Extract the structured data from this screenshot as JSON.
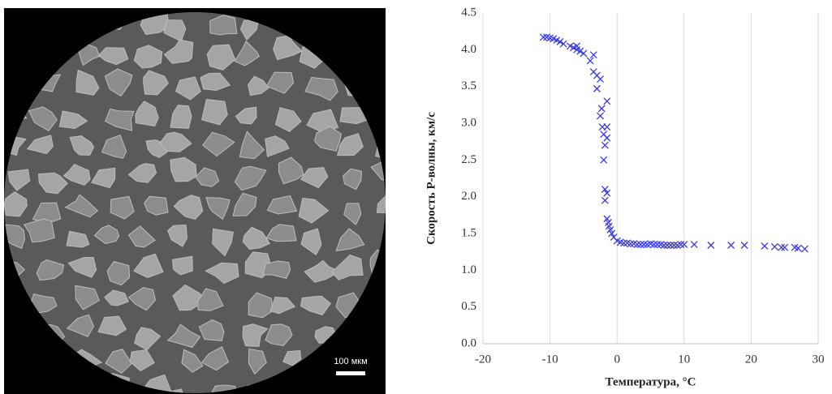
{
  "image": {
    "scale_label": "100 мкм"
  },
  "chart_data": {
    "type": "scatter",
    "x_label": "Температура, °С",
    "y_label": "Скорость P-волны, км/с",
    "xlim": [
      -20,
      30
    ],
    "xticks": [
      -20,
      -10,
      0,
      10,
      20,
      30
    ],
    "ylim": [
      0,
      4.5
    ],
    "yticks": [
      {
        "value": 0,
        "label": "0.0"
      },
      0.5,
      {
        "value": 1,
        "label": "1.0"
      },
      1.5,
      {
        "value": 2,
        "label": "2.0"
      },
      2.5,
      {
        "value": 3,
        "label": "3.0"
      },
      3.5,
      {
        "value": 4,
        "label": "4.0"
      },
      4.5
    ],
    "grid": "x",
    "series": [
      {
        "name": null,
        "color": "#3a3ae0",
        "marker": "x",
        "x": [
          -11,
          -10.5,
          -10,
          -9.5,
          -9,
          -8.5,
          -8,
          -7,
          -6.5,
          -6,
          -6,
          -5.5,
          -5,
          -4,
          -3.5,
          -3.5,
          -3,
          -3,
          -2.5,
          -2.3,
          -2.5,
          -2.2,
          -2,
          -1.8,
          -2,
          -1.5,
          -1.5,
          -1.5,
          -1.8,
          -1.5,
          -1.8,
          -1.5,
          -1.3,
          -1.2,
          -1,
          -0.8,
          -0.5,
          0,
          0.5,
          1,
          1.5,
          2,
          2.5,
          3,
          3.5,
          4,
          4.5,
          5,
          5.5,
          6,
          6.5,
          7,
          7.5,
          8,
          8.5,
          9,
          9.5,
          10,
          11.5,
          14,
          17,
          19,
          22,
          23.5,
          24.5,
          25,
          26.5,
          27,
          28
        ],
        "values": [
          4.17,
          4.17,
          4.16,
          4.15,
          4.13,
          4.11,
          4.08,
          4.05,
          4.03,
          4.05,
          4.0,
          3.98,
          3.95,
          3.85,
          3.93,
          3.7,
          3.65,
          3.47,
          3.6,
          3.2,
          3.1,
          2.95,
          2.85,
          2.7,
          2.5,
          3.3,
          2.95,
          2.8,
          2.1,
          2.05,
          1.95,
          1.7,
          1.65,
          1.6,
          1.55,
          1.5,
          1.45,
          1.4,
          1.38,
          1.37,
          1.37,
          1.36,
          1.36,
          1.35,
          1.35,
          1.35,
          1.35,
          1.36,
          1.35,
          1.35,
          1.35,
          1.34,
          1.34,
          1.34,
          1.34,
          1.34,
          1.35,
          1.35,
          1.35,
          1.34,
          1.34,
          1.34,
          1.33,
          1.32,
          1.31,
          1.31,
          1.31,
          1.3,
          1.29
        ]
      }
    ]
  }
}
